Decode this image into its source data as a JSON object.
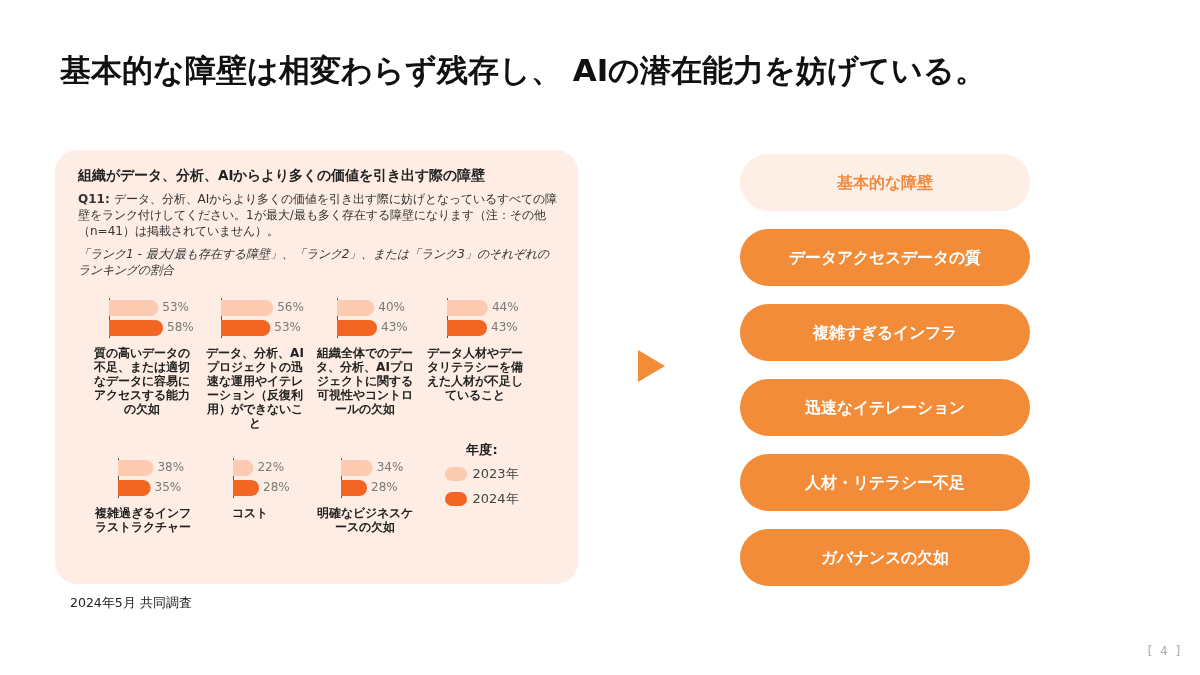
{
  "chart_data": [
    {
      "type": "other",
      "title": "基本的な障壁は相変わらず残存し、 AIの潜在能力を妨げている。",
      "annotations": [
        "2024年5月 共同調査",
        "[ 4 ]"
      ]
    },
    {
      "type": "other",
      "title": "組織がデータ、分析、AIからより多くの価値を引き出す際の障壁",
      "subtitle": "Q11: データ、分析、AIからより多くの価値を引き出す際に妨げとなっているすべての障壁をランク付けしてください。1が最大/最も多く存在する障壁になります（注：その他（n=41）は掲載されていません）。",
      "annotations": [
        "「ランク1 - 最大/最も存在する障壁」、「ランク2」、または「ランク3」のそれぞれのランキングの割合"
      ]
    },
    {
      "type": "bar",
      "orientation": "horizontal",
      "categories": [
        null
      ],
      "series": [
        {
          "color": "#fccbb0",
          "values": [
            53
          ],
          "value_labels": [
            "53%"
          ]
        },
        {
          "color": "#f26522",
          "values": [
            58
          ],
          "value_labels": [
            "58%"
          ]
        }
      ],
      "tick_labels": false,
      "xlabel": "質の高いデータの不足、または適切なデータに容易にアクセスする能力の欠如"
    },
    {
      "type": "bar",
      "orientation": "horizontal",
      "categories": [
        null
      ],
      "series": [
        {
          "color": "#fccbb0",
          "values": [
            56
          ],
          "value_labels": [
            "56%"
          ]
        },
        {
          "color": "#f26522",
          "values": [
            53
          ],
          "value_labels": [
            "53%"
          ]
        }
      ],
      "tick_labels": false,
      "xlabel": "データ、分析、AIプロジェクトの迅速な運用やイテレーション（反復利用）ができないこと"
    },
    {
      "type": "bar",
      "orientation": "horizontal",
      "categories": [
        null
      ],
      "series": [
        {
          "color": "#fccbb0",
          "values": [
            40
          ],
          "value_labels": [
            "40%"
          ]
        },
        {
          "color": "#f26522",
          "values": [
            43
          ],
          "value_labels": [
            "43%"
          ]
        }
      ],
      "tick_labels": false,
      "xlabel": "組織全体でのデータ、分析、AIプロジェクトに関する可視性やコントロールの欠如"
    },
    {
      "type": "bar",
      "orientation": "horizontal",
      "categories": [
        null
      ],
      "series": [
        {
          "color": "#fccbb0",
          "values": [
            44
          ],
          "value_labels": [
            "44%"
          ]
        },
        {
          "color": "#f26522",
          "values": [
            43
          ],
          "value_labels": [
            "43%"
          ]
        }
      ],
      "tick_labels": false,
      "xlabel": "データ人材やデータリテラシーを備えた人材が不足していること"
    },
    {
      "type": "bar",
      "orientation": "horizontal",
      "categories": [
        null
      ],
      "series": [
        {
          "color": "#fccbb0",
          "values": [
            38
          ],
          "value_labels": [
            "38%"
          ]
        },
        {
          "color": "#f26522",
          "values": [
            35
          ],
          "value_labels": [
            "35%"
          ]
        }
      ],
      "tick_labels": false,
      "xlabel": "複雑過ぎるインフラストラクチャー"
    },
    {
      "type": "bar",
      "orientation": "horizontal",
      "categories": [
        null
      ],
      "series": [
        {
          "color": "#fccbb0",
          "values": [
            22
          ],
          "value_labels": [
            "22%"
          ]
        },
        {
          "color": "#f26522",
          "values": [
            28
          ],
          "value_labels": [
            "28%"
          ]
        }
      ],
      "tick_labels": false,
      "xlabel": "コスト"
    },
    {
      "type": "bar",
      "orientation": "horizontal",
      "categories": [
        null
      ],
      "series": [
        {
          "name": "2023年",
          "color": "#fccbb0",
          "values": [
            34
          ],
          "value_labels": [
            "34%"
          ]
        },
        {
          "name": "2024年",
          "color": "#f26522",
          "values": [
            28
          ],
          "value_labels": [
            "28%"
          ]
        }
      ],
      "tick_labels": false,
      "xlabel": "明確なビジネスケースの欠如",
      "legend": "right",
      "legend_title": "年度:"
    },
    {
      "type": "other",
      "title": "基本的な障壁",
      "annotations": [
        "データアクセスデータの質",
        "複雑すぎるインフラ",
        "迅速なイテレーション",
        "人材・リテラシー不足",
        "ガバナンスの欠如"
      ]
    }
  ]
}
